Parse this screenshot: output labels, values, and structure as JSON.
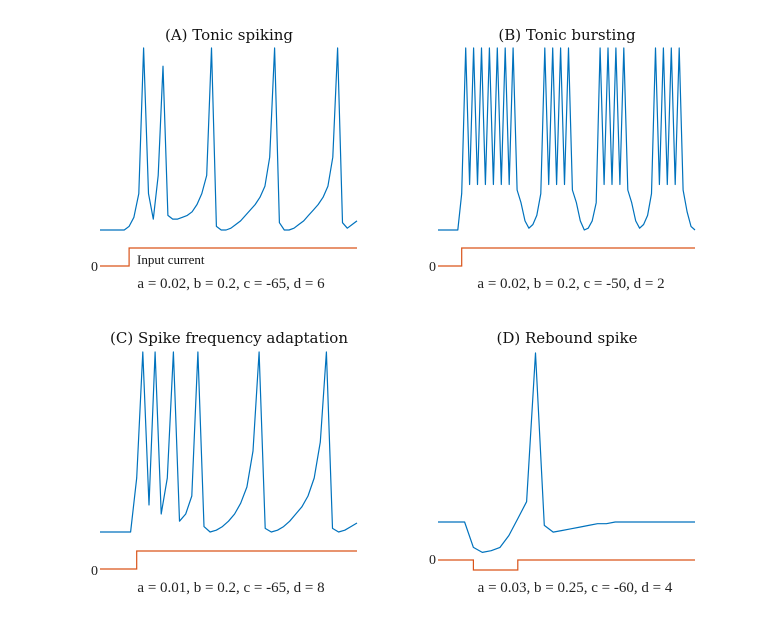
{
  "colors": {
    "voltage": "#0072BD",
    "input": "#D95319"
  },
  "chart_data": [
    {
      "type": "line",
      "title": "(A) Tonic spiking",
      "params": "a = 0.02,   b = 0.2,   c = -65,   d = 6",
      "zero_label": "0",
      "annotation": "Input current",
      "series": [
        {
          "values": [
            0.0,
            0.0,
            0.0,
            0.0,
            0.0,
            0.0,
            0.02,
            0.07,
            0.2,
            1.0,
            0.2,
            0.06,
            0.3,
            0.9,
            0.08,
            0.06,
            0.06,
            0.07,
            0.08,
            0.1,
            0.14,
            0.2,
            0.3,
            1.0,
            0.02,
            0.0,
            0.0,
            0.01,
            0.03,
            0.05,
            0.08,
            0.11,
            0.14,
            0.18,
            0.24,
            0.4,
            1.0,
            0.04,
            0.0,
            0.0,
            0.01,
            0.03,
            0.05,
            0.08,
            0.11,
            0.14,
            0.18,
            0.24,
            0.4,
            1.0,
            0.04,
            0.01,
            0.03,
            0.05
          ]
        },
        {
          "values": [
            0,
            0,
            0,
            0,
            0,
            0,
            1,
            1,
            1,
            1,
            1,
            1,
            1,
            1,
            1,
            1,
            1,
            1,
            1,
            1,
            1,
            1,
            1,
            1,
            1,
            1,
            1,
            1,
            1,
            1,
            1,
            1,
            1,
            1,
            1,
            1,
            1,
            1,
            1,
            1,
            1,
            1,
            1,
            1,
            1,
            1,
            1,
            1,
            1,
            1,
            1,
            1,
            1,
            1
          ]
        }
      ]
    },
    {
      "type": "line",
      "title": "(B) Tonic bursting",
      "params": "a = 0.02,   b = 0.2,   c = -50,   d = 2",
      "zero_label": "0",
      "series": [
        {
          "values": [
            0.0,
            0.0,
            0.0,
            0.0,
            0.0,
            0.0,
            0.2,
            1.0,
            0.25,
            1.0,
            0.25,
            1.0,
            0.25,
            1.0,
            0.25,
            1.0,
            0.25,
            1.0,
            0.25,
            1.0,
            0.22,
            0.15,
            0.05,
            0.01,
            0.03,
            0.08,
            0.2,
            1.0,
            0.25,
            1.0,
            0.25,
            1.0,
            0.25,
            1.0,
            0.22,
            0.15,
            0.05,
            0.0,
            0.01,
            0.05,
            0.15,
            1.0,
            0.25,
            1.0,
            0.25,
            1.0,
            0.25,
            1.0,
            0.22,
            0.15,
            0.05,
            0.01,
            0.03,
            0.08,
            0.2,
            1.0,
            0.25,
            1.0,
            0.25,
            1.0,
            0.25,
            1.0,
            0.22,
            0.1,
            0.02,
            0.0
          ]
        },
        {
          "values": [
            0,
            0,
            0,
            0,
            0,
            0,
            1,
            1,
            1,
            1,
            1,
            1,
            1,
            1,
            1,
            1,
            1,
            1,
            1,
            1,
            1,
            1,
            1,
            1,
            1,
            1,
            1,
            1,
            1,
            1,
            1,
            1,
            1,
            1,
            1,
            1,
            1,
            1,
            1,
            1,
            1,
            1,
            1,
            1,
            1,
            1,
            1,
            1,
            1,
            1,
            1,
            1,
            1,
            1,
            1,
            1,
            1,
            1,
            1,
            1,
            1,
            1,
            1,
            1,
            1,
            1
          ]
        }
      ]
    },
    {
      "type": "line",
      "title": "(C) Spike frequency adaptation",
      "params": "a = 0.01,   b = 0.2,   c = -65,   d = 8",
      "zero_label": "0",
      "series": [
        {
          "values": [
            0.0,
            0.0,
            0.0,
            0.0,
            0.0,
            0.0,
            0.3,
            1.0,
            0.15,
            1.0,
            0.1,
            0.3,
            1.0,
            0.06,
            0.1,
            0.2,
            1.0,
            0.03,
            0.0,
            0.01,
            0.03,
            0.06,
            0.1,
            0.16,
            0.25,
            0.45,
            1.0,
            0.02,
            0.0,
            0.01,
            0.03,
            0.06,
            0.1,
            0.14,
            0.2,
            0.3,
            0.5,
            1.0,
            0.02,
            0.0,
            0.01,
            0.03,
            0.05
          ]
        },
        {
          "values": [
            0,
            0,
            0,
            0,
            0,
            0,
            1,
            1,
            1,
            1,
            1,
            1,
            1,
            1,
            1,
            1,
            1,
            1,
            1,
            1,
            1,
            1,
            1,
            1,
            1,
            1,
            1,
            1,
            1,
            1,
            1,
            1,
            1,
            1,
            1,
            1,
            1,
            1,
            1,
            1,
            1,
            1,
            1
          ]
        }
      ]
    },
    {
      "type": "line",
      "title": "(D) Rebound spike",
      "params": "a = 0.03,   b = 0.25,   c = -60,   d = 4",
      "zero_label": "0",
      "series": [
        {
          "values": [
            0.0,
            0.0,
            0.0,
            0.0,
            -0.15,
            -0.18,
            -0.17,
            -0.15,
            -0.08,
            0.02,
            0.12,
            1.0,
            -0.02,
            -0.06,
            -0.05,
            -0.04,
            -0.03,
            -0.02,
            -0.01,
            -0.01,
            0.0,
            0.0,
            0.0,
            0.0,
            0.0,
            0.0,
            0.0,
            0.0,
            0.0,
            0.0
          ]
        },
        {
          "values": [
            0,
            0,
            0,
            0,
            -1,
            -1,
            -1,
            -1,
            -1,
            0,
            0,
            0,
            0,
            0,
            0,
            0,
            0,
            0,
            0,
            0,
            0,
            0,
            0,
            0,
            0,
            0,
            0,
            0,
            0,
            0
          ]
        }
      ]
    }
  ]
}
